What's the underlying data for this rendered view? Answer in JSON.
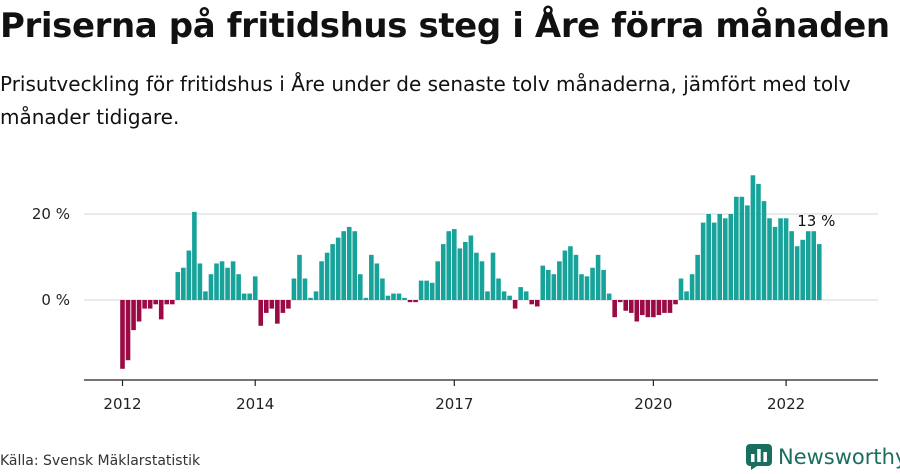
{
  "header": {
    "title": "Priserna på fritidshus steg i Åre förra månaden",
    "subtitle": "Prisutveckling för fritidshus i Åre under de senaste tolv månaderna, jämfört med tolv månader tidigare."
  },
  "footer": {
    "source": "Källa: Svensk Mäklarstatistik",
    "brand": "Newsworthy"
  },
  "colors": {
    "positive": "#17a39a",
    "negative": "#9b0a45",
    "brand": "#1a6e60"
  },
  "chart_data": {
    "type": "bar",
    "x_start": "2012-01",
    "x_end": "2023-02",
    "x_ticks": [
      "2012",
      "2014",
      "2017",
      "2020",
      "2022"
    ],
    "y_ticks": [
      "20 %",
      "0 %"
    ],
    "ylim": [
      -19,
      31
    ],
    "grid": true,
    "annotation": "13 %",
    "values": [
      -16,
      -14,
      -7,
      -5,
      -2,
      -2,
      -1,
      -4.5,
      -1,
      -1,
      6.5,
      7.5,
      11.5,
      20.5,
      8.5,
      2,
      6,
      8.5,
      9,
      7.5,
      9,
      6,
      1.5,
      1.5,
      5.5,
      -6,
      -3,
      -2,
      -5.5,
      -3,
      -2,
      5,
      10.5,
      5,
      0.5,
      2,
      9,
      11,
      13,
      14.5,
      16,
      17,
      16,
      6,
      0.5,
      10.5,
      8.5,
      5,
      1,
      1.5,
      1.5,
      0.5,
      -0.5,
      -0.5,
      4.5,
      4.5,
      4,
      9,
      13,
      16,
      16.5,
      12,
      13.5,
      15,
      11,
      9,
      2,
      11,
      5,
      2,
      1,
      -2,
      3,
      2,
      -1,
      -1.5,
      8,
      7,
      6,
      9,
      11.5,
      12.5,
      10.5,
      6,
      5.5,
      7.5,
      10.5,
      7,
      1.5,
      -4,
      -0.5,
      -2.5,
      -3,
      -5,
      -3.5,
      -4,
      -4,
      -3.5,
      -3,
      -3,
      -1,
      5,
      2,
      6,
      10.5,
      18,
      20,
      18,
      20,
      19,
      20,
      24,
      24,
      22,
      29,
      27,
      23,
      19,
      17,
      19,
      19,
      16,
      12.5,
      14,
      16,
      16,
      13
    ]
  }
}
